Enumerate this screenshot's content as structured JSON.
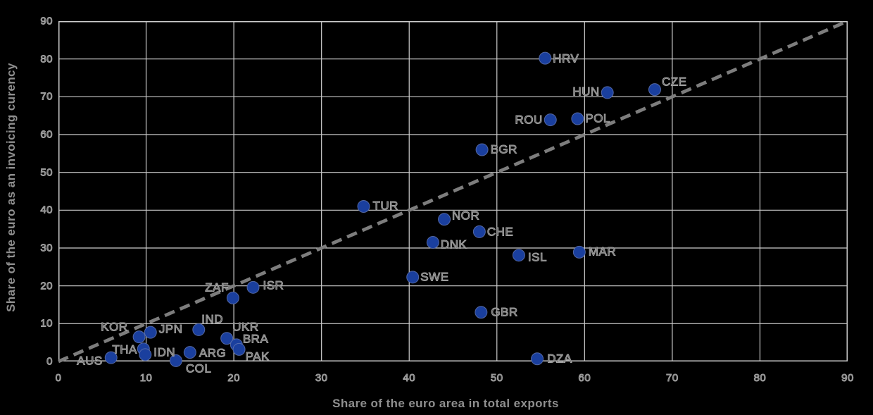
{
  "chart_data": {
    "type": "scatter",
    "xlabel": "Share of the euro area in total exports",
    "ylabel": "Share of the euro as an invoicing curency",
    "xlim": [
      0,
      90
    ],
    "ylim": [
      0,
      90
    ],
    "xticks": [
      0,
      10,
      20,
      30,
      40,
      50,
      60,
      70,
      80,
      90
    ],
    "yticks": [
      0,
      10,
      20,
      30,
      40,
      50,
      60,
      70,
      80,
      90
    ],
    "grid": true,
    "reference_line": {
      "style": "dashed",
      "from": [
        0,
        0
      ],
      "to": [
        90,
        90
      ]
    },
    "series": [
      {
        "name": "countries",
        "marker_color": "#1a3f9e",
        "points": [
          {
            "code": "AUS",
            "x": 6.0,
            "y": 1.0
          },
          {
            "code": "THA",
            "x": 9.7,
            "y": 3.3
          },
          {
            "code": "IDN",
            "x": 9.9,
            "y": 1.8
          },
          {
            "code": "KOR",
            "x": 9.2,
            "y": 6.5
          },
          {
            "code": "JPN",
            "x": 10.5,
            "y": 7.7
          },
          {
            "code": "COL",
            "x": 13.4,
            "y": 0.2
          },
          {
            "code": "ARG",
            "x": 15.0,
            "y": 2.4
          },
          {
            "code": "IND",
            "x": 16.0,
            "y": 8.4
          },
          {
            "code": "UKR",
            "x": 19.2,
            "y": 6.1
          },
          {
            "code": "BRA",
            "x": 20.3,
            "y": 4.4
          },
          {
            "code": "PAK",
            "x": 20.6,
            "y": 3.2
          },
          {
            "code": "ZAF",
            "x": 19.9,
            "y": 16.8
          },
          {
            "code": "ISR",
            "x": 22.2,
            "y": 19.6
          },
          {
            "code": "TUR",
            "x": 34.8,
            "y": 41.0
          },
          {
            "code": "SWE",
            "x": 40.4,
            "y": 22.3
          },
          {
            "code": "DNK",
            "x": 42.7,
            "y": 31.5
          },
          {
            "code": "NOR",
            "x": 44.0,
            "y": 37.6
          },
          {
            "code": "CHE",
            "x": 48.0,
            "y": 34.3
          },
          {
            "code": "GBR",
            "x": 48.2,
            "y": 13.0
          },
          {
            "code": "BGR",
            "x": 48.3,
            "y": 56.0
          },
          {
            "code": "ISL",
            "x": 52.5,
            "y": 28.1
          },
          {
            "code": "DZA",
            "x": 54.6,
            "y": 0.7
          },
          {
            "code": "HRV",
            "x": 55.5,
            "y": 80.2
          },
          {
            "code": "ROU",
            "x": 56.1,
            "y": 63.9
          },
          {
            "code": "POL",
            "x": 59.2,
            "y": 64.2
          },
          {
            "code": "MAR",
            "x": 59.4,
            "y": 28.9
          },
          {
            "code": "HUN",
            "x": 62.6,
            "y": 71.1
          },
          {
            "code": "CZE",
            "x": 68.0,
            "y": 71.9
          }
        ]
      }
    ],
    "colors": {
      "background": "#000000",
      "gridline": "#cdcdcd",
      "reference_line": "#7d7d7d",
      "marker": "#1a3f9e",
      "tick_text": "#a2a2a2",
      "axis_title_text": "#8f8f8f"
    }
  }
}
